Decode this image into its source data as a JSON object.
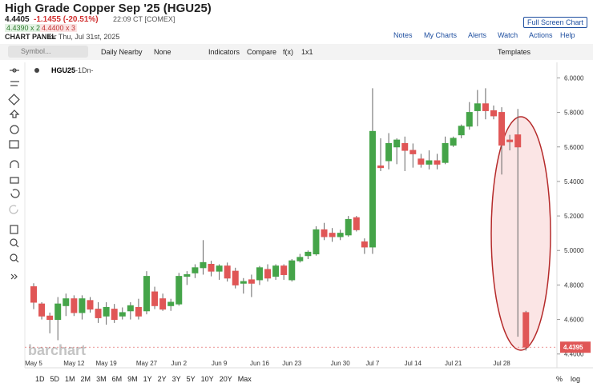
{
  "header": {
    "title": "High Grade Copper Sep '25 (HGU25)",
    "last": "4.4405",
    "change": "-1.1455 (-20.51%)",
    "time": "22:09 CT [COMEX]",
    "bid": "4.4390 x 2",
    "ask": "4.4400 x 3",
    "panel": "CHART PANEL",
    "panel_date": "for Thu, Jul 31st, 2025",
    "full_screen": "Full Screen Chart",
    "nav": [
      "Notes",
      "My Charts",
      "Alerts",
      "Watch",
      "Actions",
      "Help"
    ]
  },
  "toolbar": {
    "symbol": "Symbol...",
    "items": [
      "Daily Nearby",
      "None",
      "Indicators",
      "Compare",
      "f(x)",
      "1x1"
    ],
    "templates": "Templates"
  },
  "footer": {
    "periods": [
      "1D",
      "5D",
      "1M",
      "2M",
      "3M",
      "6M",
      "9M",
      "1Y",
      "2Y",
      "3Y",
      "5Y",
      "10Y",
      "20Y",
      "Max"
    ],
    "percent": "%",
    "log": "log"
  },
  "chart_data": {
    "type": "candlestick",
    "symbol": "HGU25",
    "interval": "-1Dn-",
    "watermark": "barchart",
    "categories": [
      "May 5",
      null,
      null,
      null,
      null,
      "May 12",
      null,
      null,
      null,
      "May 19",
      null,
      null,
      null,
      null,
      "May 27",
      null,
      null,
      null,
      "Jun 2",
      null,
      null,
      null,
      null,
      "Jun 9",
      null,
      null,
      null,
      null,
      "Jun 16",
      null,
      null,
      null,
      "Jun 23",
      null,
      null,
      null,
      null,
      null,
      "Jun 30",
      null,
      null,
      null,
      "Jul 7",
      null,
      null,
      null,
      null,
      "Jul 14",
      null,
      null,
      null,
      null,
      "Jul 21",
      null,
      null,
      null,
      null,
      null,
      "Jul 28",
      null,
      null,
      null
    ],
    "open": [
      4.79,
      4.69,
      4.62,
      4.6,
      4.68,
      4.72,
      4.64,
      4.71,
      4.66,
      4.62,
      4.66,
      4.62,
      4.65,
      4.67,
      4.65,
      4.76,
      4.72,
      4.68,
      4.69,
      4.85,
      4.87,
      4.9,
      4.92,
      4.88,
      4.91,
      4.88,
      4.81,
      4.83,
      4.83,
      4.89,
      4.85,
      4.91,
      4.83,
      4.94,
      4.97,
      4.98,
      5.12,
      5.1,
      5.08,
      5.09,
      5.19,
      5.05,
      5.02,
      5.49,
      5.52,
      5.6,
      5.62,
      5.58,
      5.53,
      5.5,
      5.52,
      5.51,
      5.61,
      5.67,
      5.72,
      5.81,
      5.85,
      5.81,
      5.8,
      5.64,
      5.67,
      4.64
    ],
    "high": [
      4.81,
      4.7,
      4.64,
      4.73,
      4.75,
      4.74,
      4.74,
      4.73,
      4.7,
      4.7,
      4.69,
      4.67,
      4.7,
      4.72,
      4.88,
      4.79,
      4.75,
      4.72,
      4.87,
      4.88,
      4.92,
      5.06,
      4.94,
      4.92,
      4.93,
      4.9,
      4.84,
      4.86,
      4.91,
      4.92,
      4.92,
      4.92,
      4.95,
      4.98,
      5.0,
      5.14,
      5.16,
      5.13,
      5.12,
      5.2,
      5.2,
      5.07,
      5.94,
      5.65,
      5.68,
      5.65,
      5.66,
      5.62,
      5.56,
      5.58,
      5.56,
      5.66,
      5.66,
      5.73,
      5.86,
      5.93,
      5.94,
      5.84,
      5.83,
      5.67,
      5.82,
      4.65
    ],
    "low": [
      4.66,
      4.6,
      4.52,
      4.48,
      4.62,
      4.62,
      4.6,
      4.64,
      4.58,
      4.57,
      4.58,
      4.6,
      4.6,
      4.6,
      4.63,
      4.66,
      4.65,
      4.65,
      4.68,
      4.8,
      4.84,
      4.86,
      4.85,
      4.83,
      4.82,
      4.78,
      4.75,
      4.73,
      4.8,
      4.82,
      4.83,
      4.83,
      4.82,
      4.93,
      4.95,
      4.97,
      5.06,
      5.05,
      5.06,
      5.08,
      5.11,
      4.98,
      4.98,
      5.46,
      5.47,
      5.5,
      5.46,
      5.48,
      5.48,
      5.47,
      5.47,
      5.5,
      5.6,
      5.65,
      5.7,
      5.72,
      5.76,
      5.76,
      5.44,
      5.58,
      4.5,
      4.42
    ],
    "close": [
      4.7,
      4.62,
      4.6,
      4.69,
      4.72,
      4.64,
      4.72,
      4.66,
      4.61,
      4.67,
      4.6,
      4.64,
      4.68,
      4.62,
      4.85,
      4.68,
      4.66,
      4.7,
      4.85,
      4.86,
      4.9,
      4.93,
      4.88,
      4.91,
      4.84,
      4.8,
      4.82,
      4.81,
      4.9,
      4.84,
      4.91,
      4.86,
      4.94,
      4.96,
      4.99,
      5.12,
      5.08,
      5.08,
      5.1,
      5.18,
      5.12,
      5.02,
      5.69,
      5.48,
      5.62,
      5.64,
      5.58,
      5.56,
      5.5,
      5.52,
      5.5,
      5.62,
      5.65,
      5.72,
      5.8,
      5.85,
      5.81,
      5.78,
      5.61,
      5.63,
      5.6,
      4.44
    ],
    "up_color": "#45a449",
    "down_color": "#e05656",
    "last_price": 4.4395,
    "ylim": [
      4.32,
      6.09
    ],
    "yticks": [
      {
        "value": 4.4,
        "label": "4.4000"
      },
      {
        "value": 4.6,
        "label": "4.6000"
      },
      {
        "value": 4.8,
        "label": "4.8000"
      },
      {
        "value": 5.0,
        "label": "5.0000"
      },
      {
        "value": 5.2,
        "label": "5.2000"
      },
      {
        "value": 5.4,
        "label": "5.4000"
      },
      {
        "value": 5.6,
        "label": "5.6000"
      },
      {
        "value": 5.8,
        "label": "5.8000"
      },
      {
        "value": 6.0,
        "label": "6.0000"
      }
    ],
    "grid": false
  }
}
